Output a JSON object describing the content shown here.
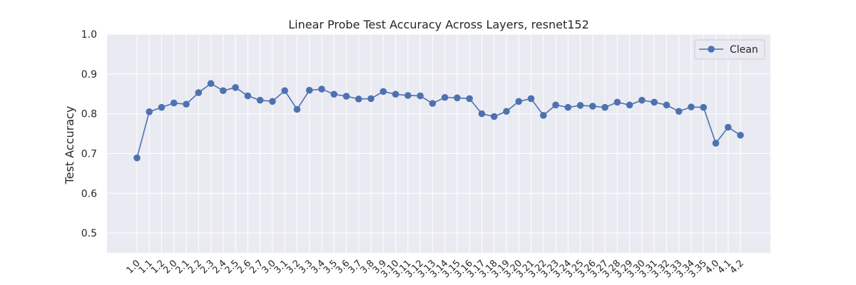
{
  "chart_data": {
    "type": "line",
    "title": "Linear Probe Test Accuracy Across Layers, resnet152",
    "xlabel": "",
    "ylabel": "Test Accuracy",
    "ylim": [
      0.45,
      1.0
    ],
    "yticks": [
      "0.5",
      "0.6",
      "0.7",
      "0.8",
      "0.9",
      "1.0"
    ],
    "grid": true,
    "legend_position": "top-right",
    "categories": [
      "1.0",
      "1.1",
      "1.2",
      "2.0",
      "2.1",
      "2.2",
      "2.3",
      "2.4",
      "2.5",
      "2.6",
      "2.7",
      "3.0",
      "3.1",
      "3.2",
      "3.3",
      "3.4",
      "3.5",
      "3.6",
      "3.7",
      "3.8",
      "3.9",
      "3.10",
      "3.11",
      "3.12",
      "3.13",
      "3.14",
      "3.15",
      "3.16",
      "3.17",
      "3.18",
      "3.19",
      "3.20",
      "3.21",
      "3.22",
      "3.23",
      "3.24",
      "3.25",
      "3.26",
      "3.27",
      "3.28",
      "3.29",
      "3.30",
      "3.31",
      "3.32",
      "3.33",
      "3.34",
      "3.35",
      "4.0",
      "4.1",
      "4.2"
    ],
    "series": [
      {
        "name": "Clean",
        "color": "#4c72b0",
        "values": [
          0.689,
          0.805,
          0.816,
          0.827,
          0.824,
          0.853,
          0.876,
          0.858,
          0.866,
          0.845,
          0.834,
          0.831,
          0.858,
          0.811,
          0.859,
          0.862,
          0.849,
          0.844,
          0.837,
          0.838,
          0.856,
          0.849,
          0.846,
          0.845,
          0.826,
          0.841,
          0.84,
          0.838,
          0.8,
          0.793,
          0.806,
          0.831,
          0.838,
          0.796,
          0.822,
          0.816,
          0.821,
          0.819,
          0.816,
          0.829,
          0.822,
          0.834,
          0.829,
          0.822,
          0.806,
          0.817,
          0.816,
          0.726,
          0.766,
          0.746
        ]
      }
    ]
  }
}
